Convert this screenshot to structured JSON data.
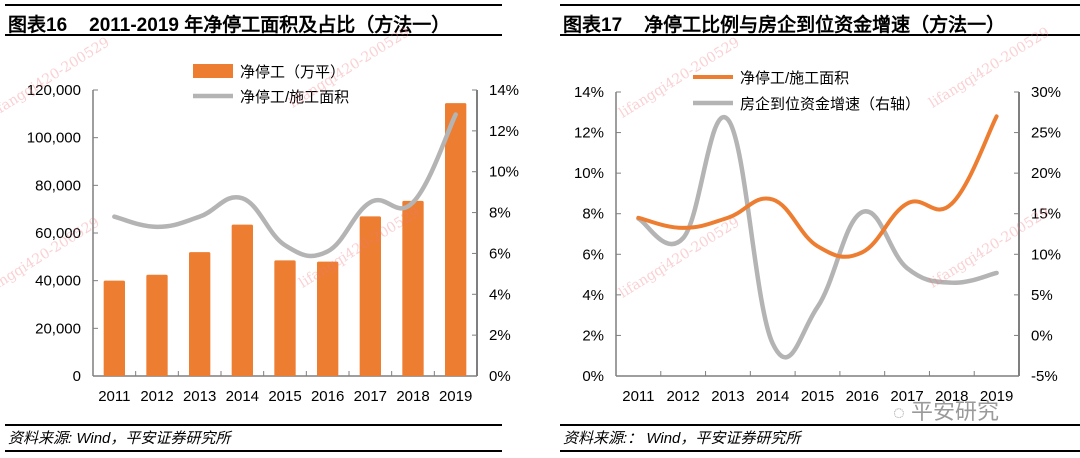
{
  "colors": {
    "bar": "#ED7D31",
    "line_orange": "#ED7D31",
    "line_gray": "#B4B4B4",
    "axis": "#7f7f7f",
    "rule": "#000000"
  },
  "left_panel": {
    "figure_number": "图表16",
    "title": "2011-2019 年净停工面积及占比（方法一）",
    "source": "资料来源: Wind，平安证券研究所"
  },
  "right_panel": {
    "figure_number": "图表17",
    "title": "净停工比例与房企到位资金增速（方法一）",
    "source": "资料来源:： Wind，平安证券研究所"
  },
  "watermark_text": "lifangqi420-200529",
  "brand_text": "平安研究",
  "chart_data": [
    {
      "type": "bar",
      "title": "2011-2019 年净停工面积及占比（方法一）",
      "categories": [
        "2011",
        "2012",
        "2013",
        "2014",
        "2015",
        "2016",
        "2017",
        "2018",
        "2019"
      ],
      "series": [
        {
          "name": "净停工（万平）",
          "type": "bar",
          "axis": "left",
          "values": [
            40000,
            42500,
            52000,
            63500,
            48500,
            48000,
            67000,
            73500,
            114500
          ]
        },
        {
          "name": "净停工/施工面积",
          "type": "line",
          "axis": "right",
          "values": [
            7.8,
            7.3,
            7.8,
            8.7,
            6.4,
            6.1,
            8.5,
            8.5,
            12.8
          ]
        }
      ],
      "y_left": {
        "min": 0,
        "max": 120000,
        "step": 20000,
        "ticks": [
          "0",
          "20,000",
          "40,000",
          "60,000",
          "80,000",
          "100,000",
          "120,000"
        ]
      },
      "y_right": {
        "min": 0,
        "max": 14,
        "step": 2,
        "ticks": [
          "0%",
          "2%",
          "4%",
          "6%",
          "8%",
          "10%",
          "12%",
          "14%"
        ]
      },
      "xlabel": "",
      "ylabel": "",
      "grid": false,
      "legend_position": "top-center"
    },
    {
      "type": "line",
      "title": "净停工比例与房企到位资金增速（方法一）",
      "categories": [
        "2011",
        "2012",
        "2013",
        "2014",
        "2015",
        "2016",
        "2017",
        "2018",
        "2019"
      ],
      "series": [
        {
          "name": "净停工/施工面积",
          "axis": "left",
          "values": [
            7.8,
            7.3,
            7.8,
            8.7,
            6.4,
            6.1,
            8.5,
            8.5,
            12.8
          ]
        },
        {
          "name": "房企到位资金增速（右轴）",
          "axis": "right",
          "values": [
            14.4,
            12.0,
            26.6,
            -1.0,
            3.5,
            15.2,
            8.3,
            6.5,
            7.7
          ]
        }
      ],
      "y_left": {
        "min": 0,
        "max": 14,
        "step": 2,
        "ticks": [
          "0%",
          "2%",
          "4%",
          "6%",
          "8%",
          "10%",
          "12%",
          "14%"
        ]
      },
      "y_right": {
        "min": -5,
        "max": 30,
        "step": 5,
        "ticks": [
          "-5%",
          "0%",
          "5%",
          "10%",
          "15%",
          "20%",
          "25%",
          "30%"
        ]
      },
      "xlabel": "",
      "ylabel": "",
      "grid": false,
      "legend_position": "top-center"
    }
  ]
}
